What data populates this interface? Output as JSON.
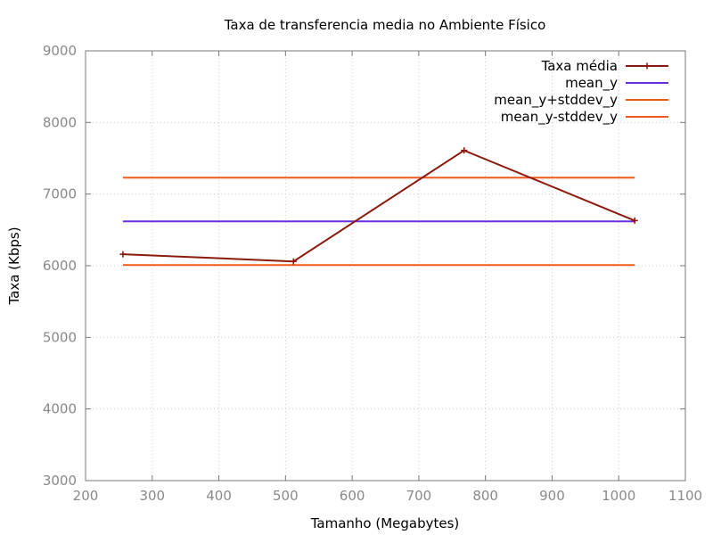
{
  "chart_data": {
    "type": "line",
    "title": "Taxa de transferencia media no Ambiente Físico",
    "xlabel": "Tamanho (Megabytes)",
    "ylabel": "Taxa (Kbps)",
    "xlim": [
      200,
      1100
    ],
    "ylim": [
      3000,
      9000
    ],
    "xticks": [
      200,
      300,
      400,
      500,
      600,
      700,
      800,
      900,
      1000,
      1100
    ],
    "yticks": [
      3000,
      4000,
      5000,
      6000,
      7000,
      8000,
      9000
    ],
    "grid": true,
    "legend_position": "top-right",
    "series": [
      {
        "name": "Taxa média",
        "color": "#8b1a0e",
        "marker": "plus",
        "x": [
          256,
          512,
          768,
          1024
        ],
        "y": [
          6160,
          6060,
          7610,
          6630
        ]
      },
      {
        "name": "mean_y",
        "color": "#6a2ee0",
        "x": [
          256,
          1024
        ],
        "y": [
          6620,
          6620
        ]
      },
      {
        "name": "mean_y+stddev_y",
        "color": "#f05a1a",
        "x": [
          256,
          1024
        ],
        "y": [
          7230,
          7230
        ]
      },
      {
        "name": "mean_y-stddev_y",
        "color": "#f05a1a",
        "x": [
          256,
          1024
        ],
        "y": [
          6010,
          6010
        ]
      }
    ]
  }
}
